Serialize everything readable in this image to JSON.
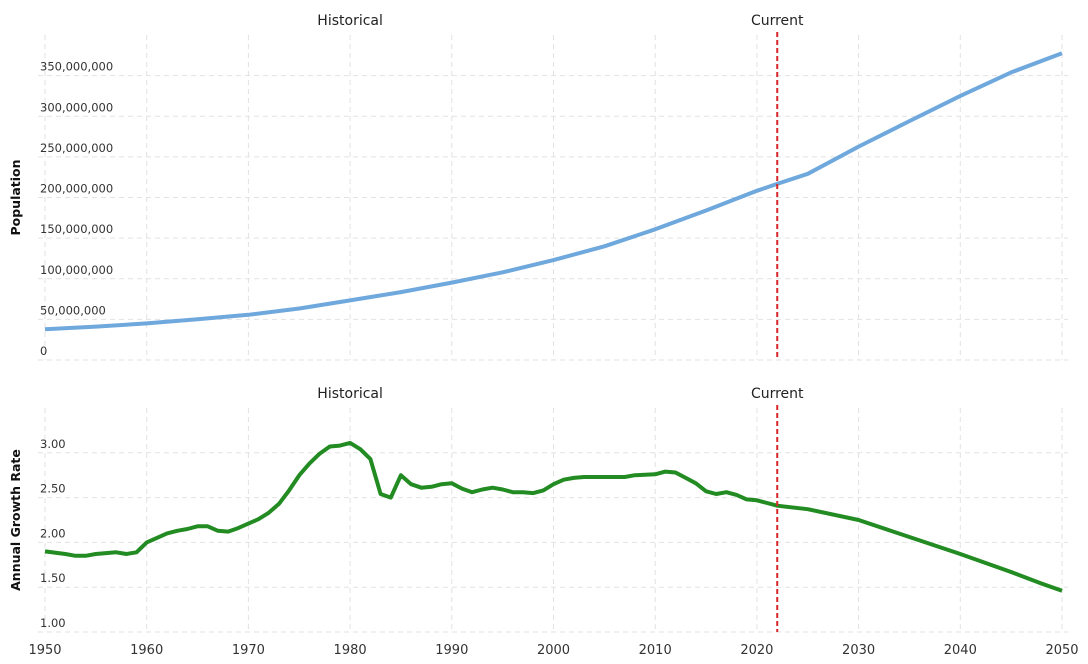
{
  "chart_data": [
    {
      "type": "line",
      "ylabel": "Population",
      "annotations": [
        {
          "text": "Historical",
          "x": 1980
        },
        {
          "text": "Current",
          "x": 2022
        }
      ],
      "current_line": {
        "x": 2022,
        "color": "#d62728"
      },
      "xlim": [
        1950,
        2050
      ],
      "xticks": [
        1950,
        1960,
        1970,
        1980,
        1990,
        2000,
        2010,
        2020,
        2030,
        2040,
        2050
      ],
      "ylim": [
        0,
        400000000
      ],
      "yticks": [
        0,
        {
          "value": 50000000,
          "label": "50,000,000"
        },
        {
          "value": 100000000,
          "label": "100,000,000"
        },
        {
          "value": 150000000,
          "label": "150,000,000"
        },
        {
          "value": 200000000,
          "label": "200,000,000"
        },
        {
          "value": 250000000,
          "label": "250,000,000"
        },
        {
          "value": 300000000,
          "label": "300,000,000"
        },
        {
          "value": 350000000,
          "label": "350,000,000"
        }
      ],
      "grid": true,
      "series": [
        {
          "name": "Population",
          "color": "#6fa8dc",
          "x": [
            1950,
            1955,
            1960,
            1965,
            1970,
            1975,
            1980,
            1985,
            1990,
            1995,
            2000,
            2005,
            2010,
            2015,
            2020,
            2022,
            2025,
            2030,
            2035,
            2040,
            2045,
            2050
          ],
          "values": [
            37900000,
            41100000,
            45100000,
            50100000,
            55600000,
            63400000,
            73400000,
            83600000,
            95200000,
            107900000,
            122900000,
            140000000,
            160900000,
            184000000,
            208300000,
            216700000,
            229200000,
            262600000,
            294000000,
            325000000,
            354000000,
            377500000
          ]
        }
      ]
    },
    {
      "type": "line",
      "ylabel": "Annual Growth Rate",
      "annotations": [
        {
          "text": "Historical",
          "x": 1980
        },
        {
          "text": "Current",
          "x": 2022
        }
      ],
      "current_line": {
        "x": 2022,
        "color": "#d62728"
      },
      "xlim": [
        1950,
        2050
      ],
      "xticks": [
        1950,
        1960,
        1970,
        1980,
        1990,
        2000,
        2010,
        2020,
        2030,
        2040,
        2050
      ],
      "ylim": [
        1.0,
        3.5
      ],
      "yticks": [
        {
          "value": 1,
          "label": "1.00"
        },
        {
          "value": 1.5,
          "label": "1.50"
        },
        {
          "value": 2,
          "label": "2.00"
        },
        {
          "value": 2.5,
          "label": "2.50"
        },
        {
          "value": 3,
          "label": "3.00"
        }
      ],
      "grid": true,
      "series": [
        {
          "name": "Annual Growth Rate",
          "color": "#228b22",
          "x": [
            1950,
            1952,
            1953,
            1954,
            1955,
            1957,
            1958,
            1959,
            1960,
            1961,
            1962,
            1963,
            1964,
            1965,
            1966,
            1967,
            1968,
            1969,
            1970,
            1971,
            1972,
            1973,
            1974,
            1975,
            1976,
            1977,
            1978,
            1979,
            1980,
            1981,
            1982,
            1983,
            1984,
            1985,
            1986,
            1987,
            1988,
            1989,
            1990,
            1991,
            1992,
            1993,
            1994,
            1995,
            1996,
            1997,
            1998,
            1999,
            2000,
            2001,
            2002,
            2003,
            2007,
            2008,
            2010,
            2011,
            2012,
            2013,
            2014,
            2015,
            2016,
            2017,
            2018,
            2019,
            2020,
            2021,
            2022,
            2025,
            2030,
            2035,
            2040,
            2045,
            2048,
            2050
          ],
          "values": [
            1.9,
            1.87,
            1.85,
            1.85,
            1.87,
            1.89,
            1.87,
            1.89,
            2.0,
            2.05,
            2.1,
            2.13,
            2.15,
            2.18,
            2.18,
            2.13,
            2.12,
            2.16,
            2.21,
            2.26,
            2.33,
            2.43,
            2.58,
            2.75,
            2.88,
            2.99,
            3.07,
            3.08,
            3.11,
            3.04,
            2.93,
            2.54,
            2.5,
            2.75,
            2.65,
            2.61,
            2.62,
            2.65,
            2.66,
            2.6,
            2.56,
            2.59,
            2.61,
            2.59,
            2.56,
            2.56,
            2.55,
            2.58,
            2.65,
            2.7,
            2.72,
            2.73,
            2.73,
            2.75,
            2.76,
            2.79,
            2.78,
            2.72,
            2.66,
            2.57,
            2.54,
            2.56,
            2.53,
            2.48,
            2.47,
            2.44,
            2.41,
            2.37,
            2.25,
            2.06,
            1.87,
            1.67,
            1.54,
            1.46
          ]
        }
      ]
    }
  ]
}
